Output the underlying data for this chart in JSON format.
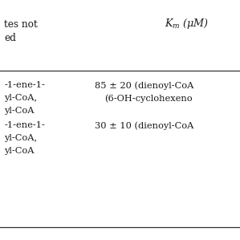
{
  "background_color": "#ffffff",
  "text_color": "#1a1a1a",
  "header_left_line1": "tes not",
  "header_left_line2": "ed",
  "header_right": "$K_m$ (μM)",
  "row1_left_line1": "-1-ene-1-",
  "row1_left_line2": "yl-CoA,",
  "row1_left_line3": "yl-CoA",
  "row1_right_line1": "85 ± 20 (dienoyl-CoA",
  "row1_right_line2": "(6-OH-cyclohexeno",
  "row2_left_line1": "-1-ene-1-",
  "row2_left_line2": "yl-CoA,",
  "row2_left_line3": "yl-CoA",
  "row2_right_line1": "30 ± 10 (dienoyl-CoA",
  "font_size": 7.2,
  "line_color": "#333333",
  "line_width": 0.9
}
